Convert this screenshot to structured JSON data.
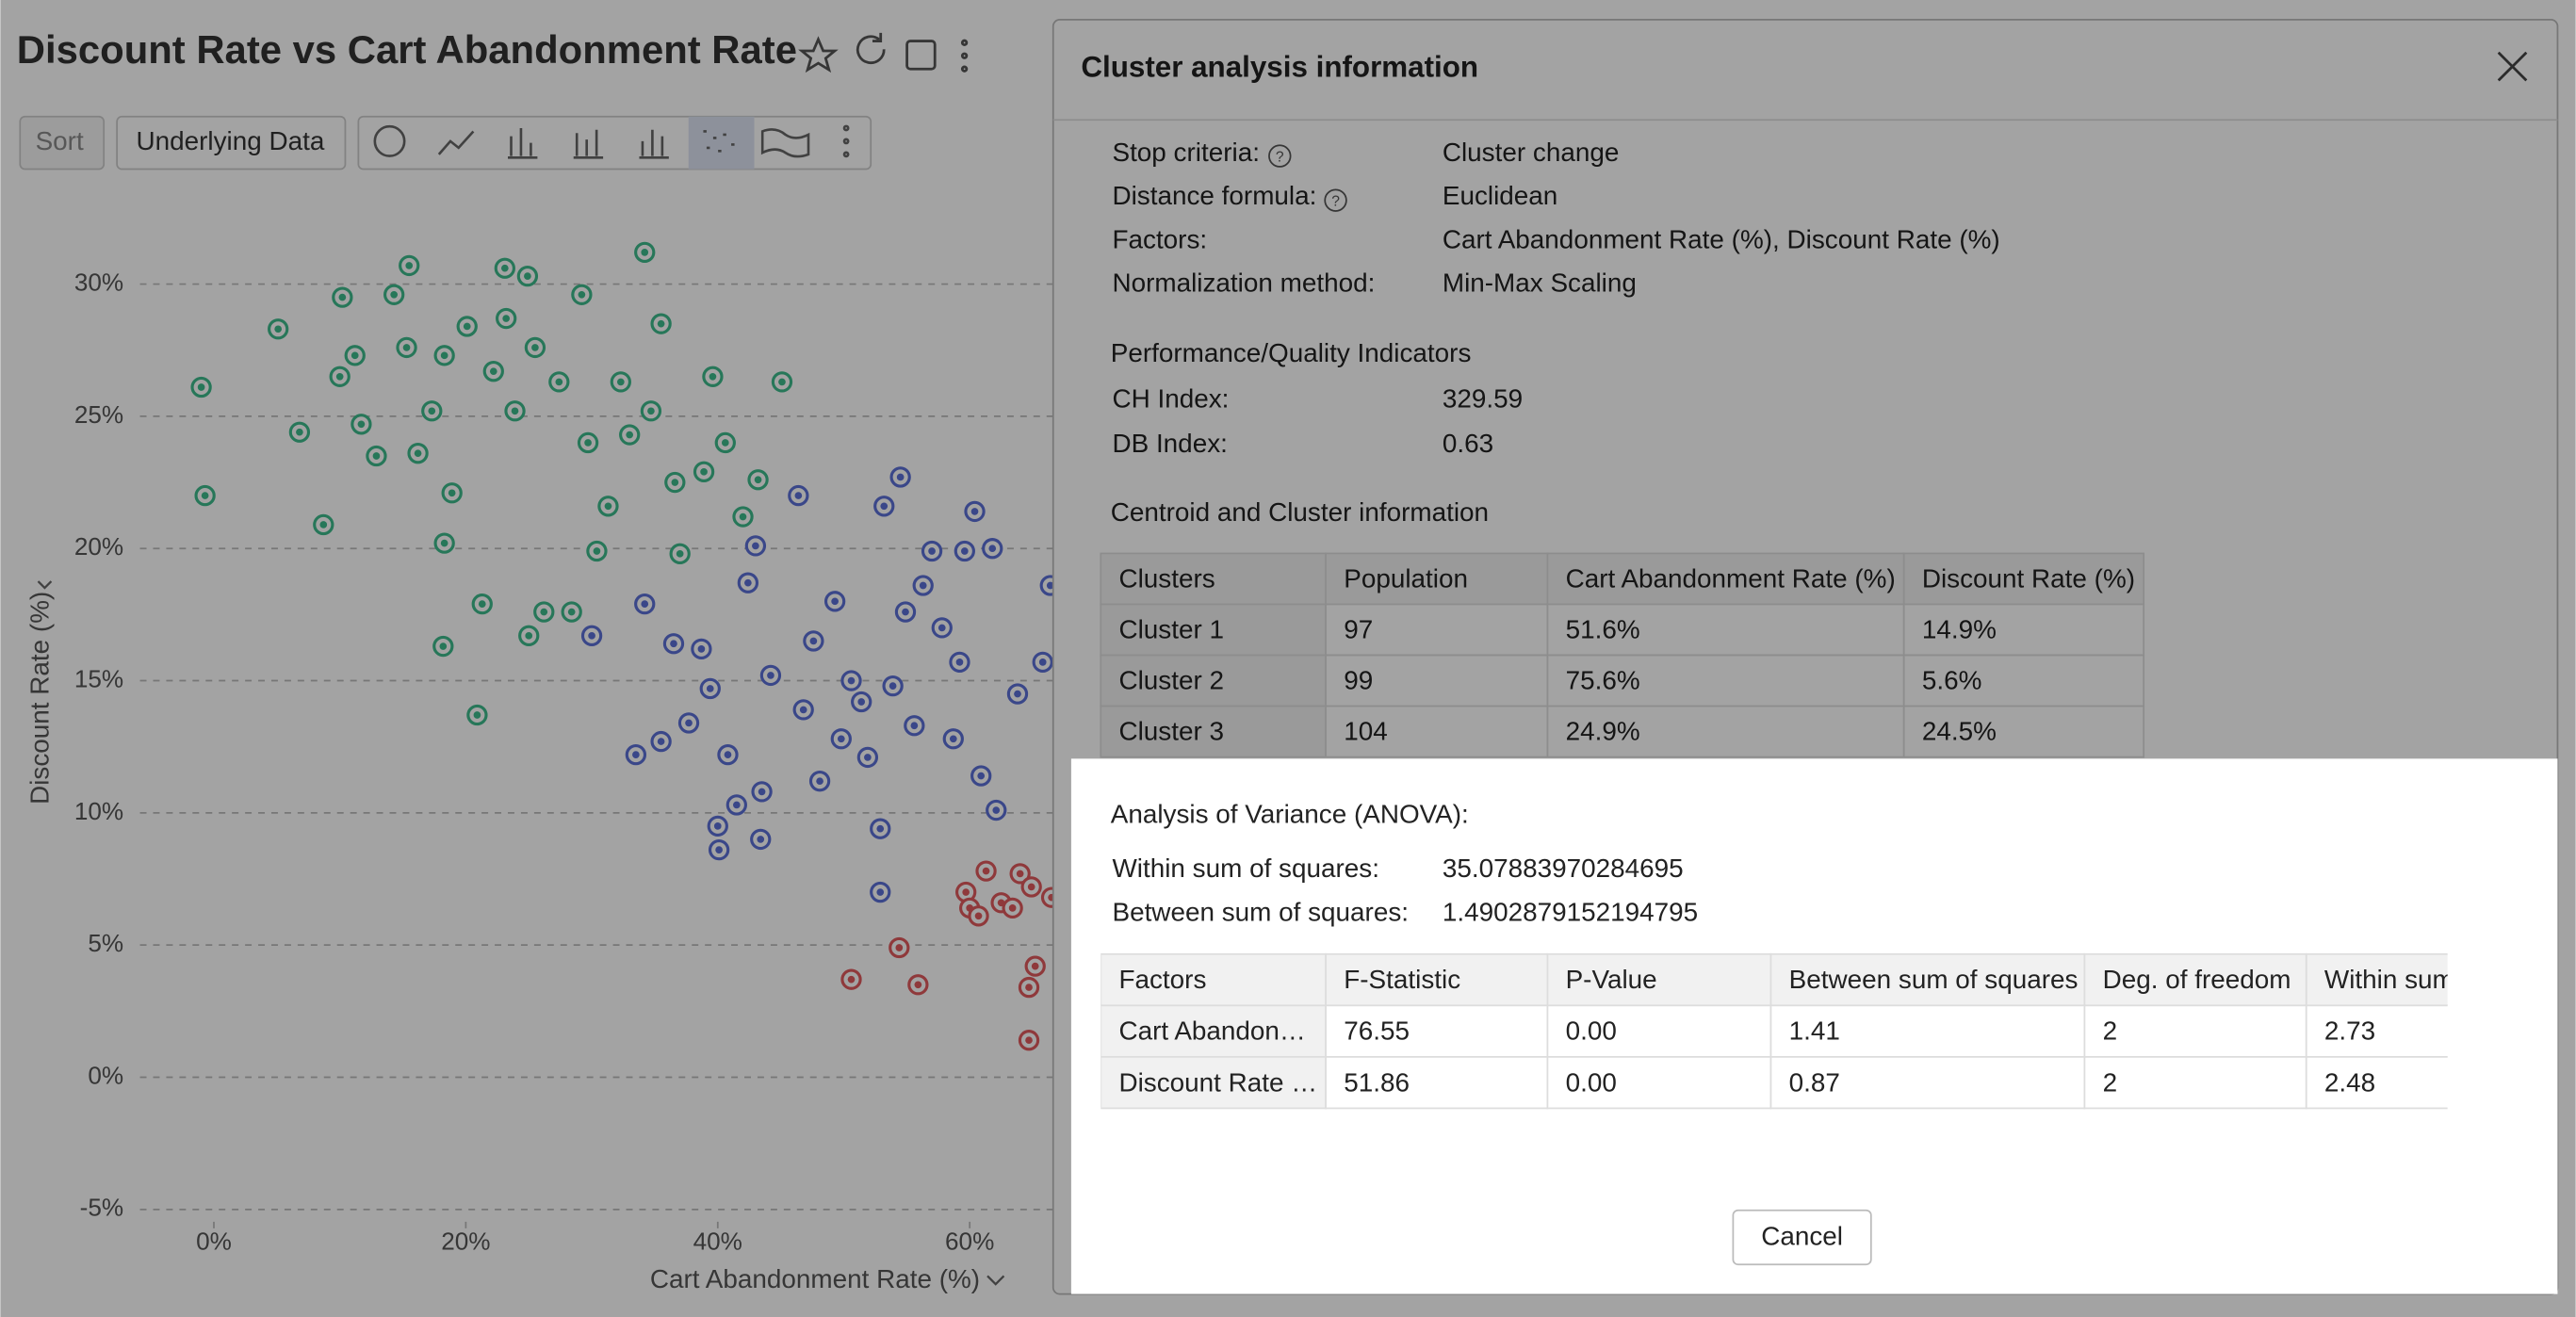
{
  "chart": {
    "title": "Discount Rate vs Cart Abandonment Rate",
    "toolbar": [
      "Sort",
      "Underlying Data"
    ],
    "y_axis_label": "Discount Rate (%)",
    "x_axis_label": "Cart Abandonment Rate (%)",
    "ylim": [
      -5.5,
      32
    ],
    "yticks": [
      {
        "value": 30,
        "label": "30%"
      },
      {
        "value": 25,
        "label": "25%"
      },
      {
        "value": 20,
        "label": "20%"
      },
      {
        "value": 15,
        "label": "15%"
      },
      {
        "value": 10,
        "label": "10%"
      },
      {
        "value": 5,
        "label": "5%"
      },
      {
        "value": 0,
        "label": "0%"
      },
      {
        "value": -5,
        "label": "-5%"
      }
    ],
    "xticks": [
      {
        "value": 0,
        "label": "0%"
      },
      {
        "value": 20,
        "label": "20%"
      },
      {
        "value": 40,
        "label": "40%"
      },
      {
        "value": 60,
        "label": "60%"
      }
    ],
    "clusters": [
      {
        "color": "#3dbb8c",
        "points": [
          [
            -1,
            26.1
          ],
          [
            -0.7,
            22
          ],
          [
            5.1,
            28.3
          ],
          [
            6.8,
            24.4
          ],
          [
            8.7,
            20.9
          ],
          [
            10.2,
            29.5
          ],
          [
            10,
            26.5
          ],
          [
            11.2,
            27.3
          ],
          [
            11.7,
            24.7
          ],
          [
            12.9,
            23.5
          ],
          [
            14.3,
            29.6
          ],
          [
            15.5,
            30.7
          ],
          [
            15.3,
            27.6
          ],
          [
            16.2,
            23.6
          ],
          [
            17.3,
            25.2
          ],
          [
            18.3,
            27.3
          ],
          [
            18.9,
            22.1
          ],
          [
            18.3,
            20.2
          ],
          [
            18.2,
            16.3
          ],
          [
            20.1,
            28.4
          ],
          [
            20.9,
            13.7
          ],
          [
            21.3,
            17.9
          ],
          [
            22.2,
            26.7
          ],
          [
            23.1,
            30.6
          ],
          [
            23.2,
            28.7
          ],
          [
            23.9,
            25.2
          ],
          [
            24.9,
            30.3
          ],
          [
            25,
            16.7
          ],
          [
            25.5,
            27.6
          ],
          [
            26.2,
            17.6
          ],
          [
            27.4,
            26.3
          ],
          [
            28.4,
            17.6
          ],
          [
            29.2,
            29.6
          ],
          [
            29.7,
            24
          ],
          [
            30.4,
            19.9
          ],
          [
            31.3,
            21.6
          ],
          [
            32.3,
            26.3
          ],
          [
            33,
            24.3
          ],
          [
            34.2,
            31.2
          ],
          [
            34.7,
            25.2
          ],
          [
            35.5,
            28.5
          ],
          [
            36.6,
            22.5
          ],
          [
            37,
            19.8
          ],
          [
            38.9,
            22.9
          ],
          [
            39.6,
            26.5
          ],
          [
            40.6,
            24
          ],
          [
            42,
            21.2
          ],
          [
            43.2,
            22.6
          ],
          [
            45.1,
            26.3
          ]
        ]
      },
      {
        "color": "#5b6fd6",
        "points": [
          [
            30,
            16.7
          ],
          [
            33.5,
            12.2
          ],
          [
            34.2,
            17.9
          ],
          [
            35.5,
            12.7
          ],
          [
            36.5,
            16.4
          ],
          [
            37.7,
            13.4
          ],
          [
            38.7,
            16.2
          ],
          [
            39.4,
            14.7
          ],
          [
            40,
            9.5
          ],
          [
            40.1,
            8.6
          ],
          [
            40.8,
            12.2
          ],
          [
            41.5,
            10.3
          ],
          [
            42.4,
            18.7
          ],
          [
            43,
            20.1
          ],
          [
            43.5,
            10.8
          ],
          [
            44.2,
            15.2
          ],
          [
            43.4,
            9
          ],
          [
            46.4,
            22
          ],
          [
            46.8,
            13.9
          ],
          [
            47.6,
            16.5
          ],
          [
            48.1,
            11.2
          ],
          [
            49.3,
            18
          ],
          [
            49.8,
            12.8
          ],
          [
            50.6,
            15
          ],
          [
            51.4,
            14.2
          ],
          [
            51.9,
            12.1
          ],
          [
            52.9,
            9.4
          ],
          [
            52.9,
            7
          ],
          [
            53.2,
            21.6
          ],
          [
            53.9,
            14.8
          ],
          [
            54.5,
            22.7
          ],
          [
            54.9,
            17.6
          ],
          [
            55.6,
            13.3
          ],
          [
            56.3,
            18.6
          ],
          [
            57,
            19.9
          ],
          [
            57.8,
            17
          ],
          [
            58.7,
            12.8
          ],
          [
            59.2,
            15.7
          ],
          [
            59.6,
            19.9
          ],
          [
            60.4,
            21.4
          ],
          [
            60.9,
            11.4
          ],
          [
            61.8,
            20
          ],
          [
            62.1,
            10.1
          ],
          [
            63.8,
            14.5
          ],
          [
            65.8,
            15.7
          ],
          [
            66.4,
            18.6
          ]
        ]
      },
      {
        "color": "#e0595d",
        "points": [
          [
            50.6,
            3.7
          ],
          [
            54.4,
            4.9
          ],
          [
            55.9,
            3.5
          ],
          [
            59.7,
            7
          ],
          [
            60,
            6.4
          ],
          [
            60.7,
            6.1
          ],
          [
            61.3,
            7.8
          ],
          [
            62.5,
            6.6
          ],
          [
            63.4,
            6.4
          ],
          [
            64,
            7.7
          ],
          [
            64.7,
            3.4
          ],
          [
            64.7,
            1.4
          ],
          [
            65.2,
            4.2
          ],
          [
            64.9,
            7.2
          ],
          [
            66.5,
            6.8
          ]
        ]
      }
    ]
  },
  "dialog": {
    "title": "Cluster analysis information",
    "settings": [
      {
        "label": "Stop criteria:",
        "value": "Cluster change"
      },
      {
        "label": "Distance formula:",
        "value": "Euclidean"
      },
      {
        "label": "Factors:",
        "value": "Cart Abandonment Rate (%), Discount Rate (%)"
      },
      {
        "label": "Normalization method:",
        "value": "Min-Max Scaling"
      }
    ],
    "performance_heading": "Performance/Quality Indicators",
    "indicators": [
      {
        "label": "CH Index:",
        "value": "329.59"
      },
      {
        "label": "DB Index:",
        "value": "0.63"
      }
    ],
    "centroid_heading": "Centroid and Cluster information",
    "centroid_table": {
      "header": [
        "Clusters",
        "Population",
        "Cart Abandonment Rate (%)",
        "Discount Rate (%)"
      ],
      "rows": [
        [
          "Cluster 1",
          "97",
          "51.6%",
          "14.9%"
        ],
        [
          "Cluster 2",
          "99",
          "75.6%",
          "5.6%"
        ],
        [
          "Cluster 3",
          "104",
          "24.9%",
          "24.5%"
        ]
      ]
    },
    "anova_heading": "Analysis of Variance (ANOVA):",
    "anova_sums": [
      {
        "label": "Within sum of squares:",
        "value": "35.07883970284695"
      },
      {
        "label": "Between sum of squares:",
        "value": "1.4902879152194795"
      }
    ],
    "anova_table": {
      "header": [
        "Factors",
        "F-Statistic",
        "P-Value",
        "Between sum of squares",
        "Deg. of freedom",
        "Within sum of squares"
      ],
      "rows": [
        [
          "Cart Abandon…",
          "76.55",
          "0.00",
          "1.41",
          "2",
          "2.73"
        ],
        [
          "Discount Rate …",
          "51.86",
          "0.00",
          "0.87",
          "2",
          "2.48"
        ]
      ]
    },
    "cancel": "Cancel"
  }
}
